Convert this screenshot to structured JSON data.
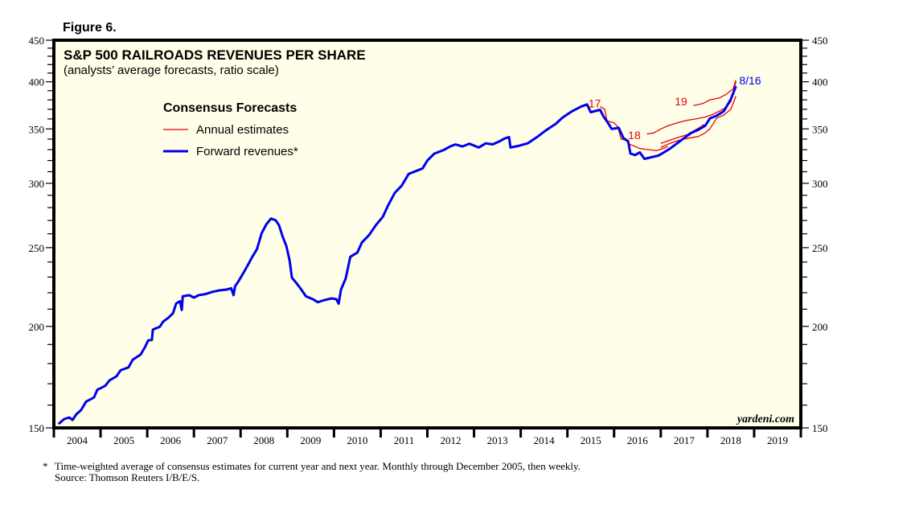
{
  "figure_label": "Figure 6.",
  "chart_data": {
    "type": "line",
    "title": "S&P 500 RAILROADS REVENUES PER SHARE",
    "subtitle": "(analysts’ average forecasts, ratio scale)",
    "xlabel": "",
    "ylabel": "",
    "yscale": "log",
    "ylim": [
      150,
      450
    ],
    "xlim": [
      2004,
      2020
    ],
    "y_ticks": [
      150,
      200,
      250,
      300,
      350,
      400,
      450
    ],
    "y_minor_step": 10,
    "x_tick_labels": [
      "2004",
      "2005",
      "2006",
      "2007",
      "2008",
      "2009",
      "2010",
      "2011",
      "2012",
      "2013",
      "2014",
      "2015",
      "2016",
      "2017",
      "2018",
      "2019"
    ],
    "grid": false,
    "legend": {
      "title": "Consensus Forecasts",
      "placement": "top-left",
      "entries": [
        {
          "label": "Annual estimates",
          "color": "#e8000b",
          "style": "thin"
        },
        {
          "label": "Forward revenues*",
          "color": "#0000ee",
          "style": "thick"
        }
      ]
    },
    "series": [
      {
        "name": "Forward revenues*",
        "color": "#0000ee",
        "points": [
          [
            2004.1,
            151.7
          ],
          [
            2004.22,
            153.8
          ],
          [
            2004.33,
            154.5
          ],
          [
            2004.4,
            153.4
          ],
          [
            2004.48,
            155.9
          ],
          [
            2004.58,
            157.7
          ],
          [
            2004.69,
            161.6
          ],
          [
            2004.86,
            163.5
          ],
          [
            2004.93,
            167.1
          ],
          [
            2005.1,
            169.0
          ],
          [
            2005.19,
            171.6
          ],
          [
            2005.34,
            173.6
          ],
          [
            2005.43,
            176.6
          ],
          [
            2005.6,
            178.1
          ],
          [
            2005.69,
            182.0
          ],
          [
            2005.86,
            184.7
          ],
          [
            2005.95,
            188.5
          ],
          [
            2006.02,
            192.2
          ],
          [
            2006.1,
            192.5
          ],
          [
            2006.12,
            198.2
          ],
          [
            2006.27,
            199.8
          ],
          [
            2006.34,
            202.7
          ],
          [
            2006.46,
            205.1
          ],
          [
            2006.55,
            207.5
          ],
          [
            2006.62,
            213.4
          ],
          [
            2006.7,
            214.8
          ],
          [
            2006.74,
            209.5
          ],
          [
            2006.76,
            217.8
          ],
          [
            2006.9,
            218.5
          ],
          [
            2007.0,
            217.0
          ],
          [
            2007.1,
            218.5
          ],
          [
            2007.25,
            219.2
          ],
          [
            2007.4,
            220.6
          ],
          [
            2007.55,
            221.5
          ],
          [
            2007.7,
            222.0
          ],
          [
            2007.8,
            222.8
          ],
          [
            2007.85,
            218.5
          ],
          [
            2007.88,
            224.0
          ],
          [
            2007.95,
            227.0
          ],
          [
            2008.05,
            232.2
          ],
          [
            2008.15,
            237.7
          ],
          [
            2008.25,
            243.6
          ],
          [
            2008.35,
            248.9
          ],
          [
            2008.45,
            260.4
          ],
          [
            2008.55,
            267.0
          ],
          [
            2008.65,
            271.4
          ],
          [
            2008.75,
            270.2
          ],
          [
            2008.82,
            266.5
          ],
          [
            2008.9,
            258.0
          ],
          [
            2008.98,
            251.0
          ],
          [
            2009.05,
            241.0
          ],
          [
            2009.1,
            229.5
          ],
          [
            2009.2,
            226.0
          ],
          [
            2009.3,
            222.0
          ],
          [
            2009.4,
            217.8
          ],
          [
            2009.55,
            216.0
          ],
          [
            2009.65,
            214.2
          ],
          [
            2009.8,
            215.5
          ],
          [
            2009.95,
            216.5
          ],
          [
            2010.05,
            216.0
          ],
          [
            2010.1,
            213.3
          ],
          [
            2010.15,
            222.0
          ],
          [
            2010.25,
            229.0
          ],
          [
            2010.35,
            243.6
          ],
          [
            2010.5,
            246.5
          ],
          [
            2010.6,
            253.8
          ],
          [
            2010.75,
            259.0
          ],
          [
            2010.9,
            266.5
          ],
          [
            2011.05,
            273.0
          ],
          [
            2011.15,
            281.0
          ],
          [
            2011.3,
            291.9
          ],
          [
            2011.45,
            298.0
          ],
          [
            2011.6,
            308.1
          ],
          [
            2011.75,
            310.5
          ],
          [
            2011.9,
            313.0
          ],
          [
            2012.0,
            320.0
          ],
          [
            2012.15,
            326.3
          ],
          [
            2012.35,
            329.7
          ],
          [
            2012.5,
            333.2
          ],
          [
            2012.6,
            334.9
          ],
          [
            2012.75,
            333.0
          ],
          [
            2012.9,
            335.6
          ],
          [
            2013.1,
            332.0
          ],
          [
            2013.25,
            336.0
          ],
          [
            2013.4,
            335.0
          ],
          [
            2013.55,
            338.0
          ],
          [
            2013.65,
            340.5
          ],
          [
            2013.75,
            342.0
          ],
          [
            2013.78,
            332.0
          ],
          [
            2013.95,
            333.5
          ],
          [
            2014.15,
            336.0
          ],
          [
            2014.35,
            342.0
          ],
          [
            2014.55,
            348.9
          ],
          [
            2014.75,
            355.0
          ],
          [
            2014.9,
            361.6
          ],
          [
            2015.1,
            368.0
          ],
          [
            2015.3,
            373.0
          ],
          [
            2015.42,
            375.2
          ],
          [
            2015.5,
            367.0
          ],
          [
            2015.7,
            369.5
          ],
          [
            2015.78,
            362.0
          ],
          [
            2015.85,
            357.5
          ],
          [
            2015.95,
            350.0
          ],
          [
            2016.1,
            351.0
          ],
          [
            2016.2,
            341.0
          ],
          [
            2016.3,
            338.0
          ],
          [
            2016.35,
            326.3
          ],
          [
            2016.45,
            325.0
          ],
          [
            2016.55,
            327.5
          ],
          [
            2016.65,
            321.5
          ],
          [
            2016.8,
            323.0
          ],
          [
            2016.95,
            324.5
          ],
          [
            2017.05,
            327.0
          ],
          [
            2017.2,
            331.0
          ],
          [
            2017.35,
            336.0
          ],
          [
            2017.5,
            341.0
          ],
          [
            2017.65,
            346.0
          ],
          [
            2017.8,
            349.0
          ],
          [
            2017.95,
            353.0
          ],
          [
            2018.05,
            360.5
          ],
          [
            2018.2,
            363.5
          ],
          [
            2018.35,
            368.0
          ],
          [
            2018.5,
            380.6
          ],
          [
            2018.61,
            395.0
          ]
        ]
      },
      {
        "name": "Annual estimate 2017",
        "label": "17",
        "color": "#e8000b",
        "points": [
          [
            2015.7,
            373.0
          ],
          [
            2015.8,
            370.0
          ],
          [
            2015.85,
            358.0
          ],
          [
            2016.0,
            356.0
          ],
          [
            2016.08,
            352.0
          ],
          [
            2016.15,
            340.0
          ],
          [
            2016.25,
            339.0
          ],
          [
            2016.33,
            335.0
          ],
          [
            2016.4,
            334.0
          ],
          [
            2016.55,
            331.0
          ],
          [
            2016.75,
            330.0
          ],
          [
            2016.9,
            329.0
          ],
          [
            2017.05,
            331.0
          ],
          [
            2017.15,
            333.0
          ]
        ]
      },
      {
        "name": "Annual estimate 2018",
        "label": "18",
        "color": "#e8000b",
        "points": [
          [
            2016.7,
            345.0
          ],
          [
            2016.85,
            346.0
          ],
          [
            2017.0,
            350.0
          ],
          [
            2017.15,
            353.0
          ],
          [
            2017.35,
            356.0
          ],
          [
            2017.55,
            358.5
          ],
          [
            2017.75,
            360.0
          ],
          [
            2017.95,
            362.0
          ],
          [
            2018.1,
            364.5
          ],
          [
            2018.25,
            368.0
          ],
          [
            2018.4,
            372.0
          ],
          [
            2018.5,
            378.0
          ],
          [
            2018.61,
            400.0
          ]
        ]
      },
      {
        "name": "Annual estimate 2019",
        "label": "19",
        "color": "#e8000b",
        "points": [
          [
            2017.7,
            374.0
          ],
          [
            2017.9,
            376.0
          ],
          [
            2018.05,
            380.0
          ],
          [
            2018.25,
            382.0
          ],
          [
            2018.4,
            386.0
          ],
          [
            2018.55,
            392.0
          ],
          [
            2018.61,
            402.0
          ]
        ]
      },
      {
        "name": "Annual estimate 2018 (lower)",
        "label": "",
        "color": "#e8000b",
        "points": [
          [
            2017.0,
            332.0
          ],
          [
            2017.2,
            336.0
          ],
          [
            2017.4,
            339.0
          ],
          [
            2017.6,
            341.0
          ],
          [
            2017.8,
            342.5
          ],
          [
            2017.95,
            346.0
          ],
          [
            2018.05,
            350.0
          ],
          [
            2018.2,
            361.0
          ],
          [
            2018.35,
            364.0
          ],
          [
            2018.5,
            370.0
          ],
          [
            2018.61,
            384.0
          ]
        ]
      },
      {
        "name": "Annual estimate 2019 (lower)",
        "label": "",
        "color": "#e8000b",
        "points": [
          [
            2017.0,
            336.0
          ],
          [
            2017.2,
            339.0
          ],
          [
            2017.4,
            342.0
          ],
          [
            2017.55,
            344.0
          ],
          [
            2017.7,
            348.0
          ],
          [
            2017.85,
            352.0
          ],
          [
            2017.93,
            354.5
          ]
        ]
      }
    ],
    "annotations": [
      {
        "text": "17",
        "color": "#e8000b",
        "at": [
          2015.45,
          372.0
        ]
      },
      {
        "text": "18",
        "color": "#e8000b",
        "at": [
          2016.3,
          340.0
        ]
      },
      {
        "text": "19",
        "color": "#e8000b",
        "at": [
          2017.3,
          374.0
        ]
      },
      {
        "text": "8/16",
        "color": "#0000ee",
        "at": [
          2018.68,
          397.0
        ]
      }
    ],
    "watermark": "yardeni.com"
  },
  "footnote": {
    "marker": "*",
    "line1": "Time-weighted average of consensus estimates for current year and next year. Monthly through December 2005, then weekly.",
    "line2": "Source: Thomson Reuters I/B/E/S."
  },
  "colors": {
    "plot_background": "#fffee8",
    "forward": "#0000ee",
    "annual": "#e8000b"
  }
}
